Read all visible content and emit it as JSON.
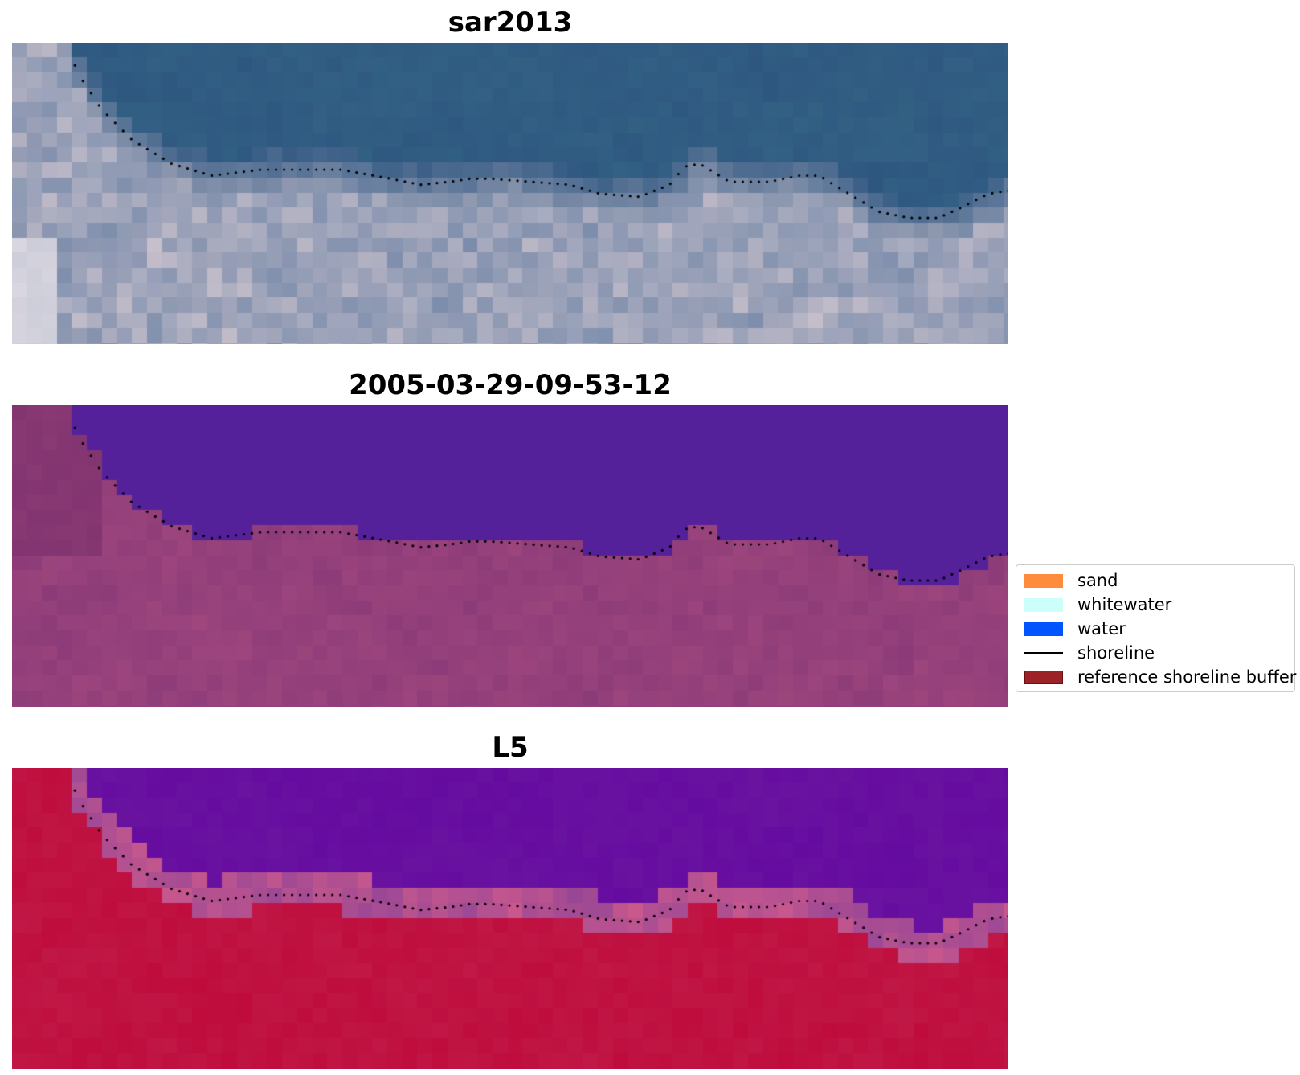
{
  "panels": [
    {
      "title": "sar2013",
      "colormap": "rgb"
    },
    {
      "title": "2005-03-29-09-53-12",
      "colormap": "classified"
    },
    {
      "title": "L5",
      "colormap": "index"
    }
  ],
  "legend": {
    "items": [
      {
        "label": "sand",
        "color": "#ff8c3c"
      },
      {
        "label": "whitewater",
        "color": "#ccfff9"
      },
      {
        "label": "water",
        "color": "#0055ff"
      },
      {
        "label": "shoreline",
        "color": "#000000"
      },
      {
        "label": "reference shoreline buffer",
        "color": "#9b2226"
      }
    ]
  },
  "colors": {
    "sar_water": "#2e5680",
    "classified_water": "#55219a",
    "classified_land": "#8a3a78",
    "index_water": "#6a14a0",
    "index_land": "#c01a48",
    "shoreline": "#000000"
  }
}
